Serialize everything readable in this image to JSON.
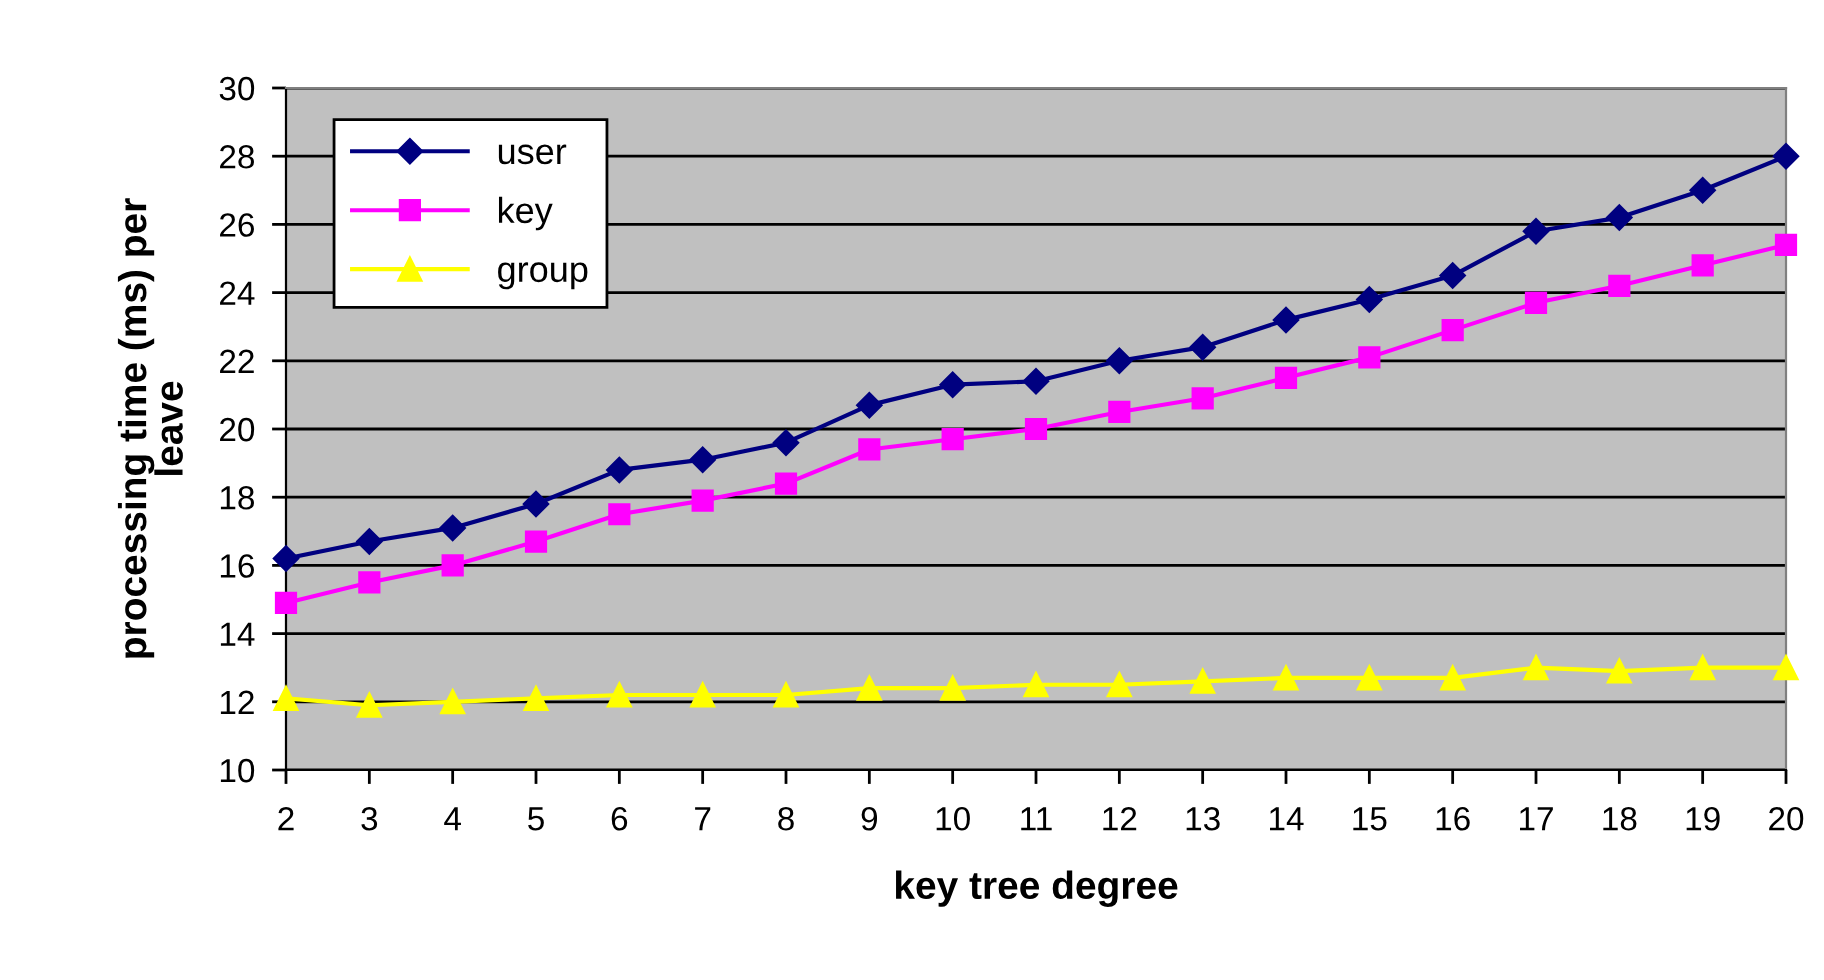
{
  "chart_data": {
    "type": "line",
    "xlabel": "key tree degree",
    "ylabel": "processing time (ms) per leave",
    "x": [
      2,
      3,
      4,
      5,
      6,
      7,
      8,
      9,
      10,
      11,
      12,
      13,
      14,
      15,
      16,
      17,
      18,
      19,
      20
    ],
    "series": [
      {
        "name": "user",
        "color": "#000080",
        "marker": "diamond",
        "values": [
          16.2,
          16.7,
          17.1,
          17.8,
          18.8,
          19.1,
          19.6,
          20.7,
          21.3,
          21.4,
          22.0,
          22.4,
          23.2,
          23.8,
          24.5,
          25.8,
          26.2,
          27.0,
          28.0
        ]
      },
      {
        "name": "key",
        "color": "#ff00ff",
        "marker": "square",
        "values": [
          14.9,
          15.5,
          16.0,
          16.7,
          17.5,
          17.9,
          18.4,
          19.4,
          19.7,
          20.0,
          20.5,
          20.9,
          21.5,
          22.1,
          22.9,
          23.7,
          24.2,
          24.8,
          25.4
        ]
      },
      {
        "name": "group",
        "color": "#ffff00",
        "marker": "triangle",
        "values": [
          12.1,
          11.9,
          12.0,
          12.1,
          12.2,
          12.2,
          12.2,
          12.4,
          12.4,
          12.5,
          12.5,
          12.6,
          12.7,
          12.7,
          12.7,
          13.0,
          12.9,
          13.0,
          13.0
        ]
      }
    ],
    "xlim": [
      2,
      20
    ],
    "xticks": [
      2,
      3,
      4,
      5,
      6,
      7,
      8,
      9,
      10,
      11,
      12,
      13,
      14,
      15,
      16,
      17,
      18,
      19,
      20
    ],
    "ylim": [
      10,
      30
    ],
    "yticks": [
      10,
      12,
      14,
      16,
      18,
      20,
      22,
      24,
      26,
      28,
      30
    ],
    "grid": "y",
    "legend": "top left",
    "line_style": "solid"
  }
}
